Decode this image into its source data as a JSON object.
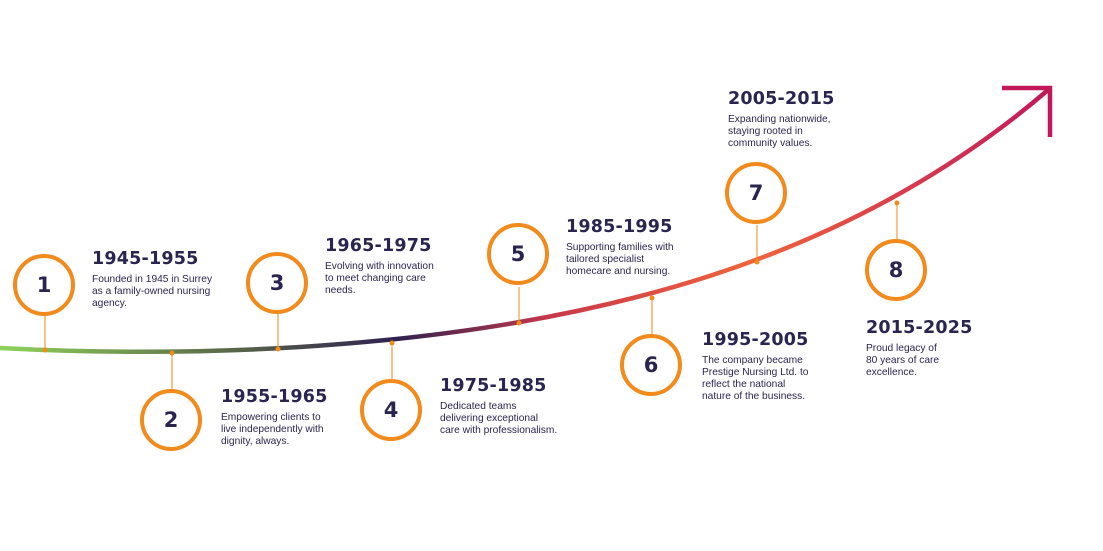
{
  "colors": {
    "circle_border": "#f28a1c",
    "text": "#2a2550",
    "gradient": [
      "#8fd35a",
      "#5c6b4a",
      "#2f2150",
      "#c8384a",
      "#f0643c",
      "#c2185b"
    ],
    "arrow": "#c2185b"
  },
  "milestones": [
    {
      "number": "1",
      "period": "1945-1955",
      "description": "Founded in 1945 in Surrey as a family-owned nursing agency."
    },
    {
      "number": "2",
      "period": "1955-1965",
      "description": "Empowering clients to live independently with dignity, always."
    },
    {
      "number": "3",
      "period": "1965-1975",
      "description": "Evolving with innovation to meet changing care needs."
    },
    {
      "number": "4",
      "period": "1975-1985",
      "description": "Dedicated teams delivering exceptional care with professionalism."
    },
    {
      "number": "5",
      "period": "1985-1995",
      "description": "Supporting families with tailored specialist homecare and nursing."
    },
    {
      "number": "6",
      "period": "1995-2005",
      "description": "The company became Prestige Nursing Ltd. to reflect the national nature of the business."
    },
    {
      "number": "7",
      "period": "2005-2015",
      "description": "Expanding nationwide, staying rooted in community values."
    },
    {
      "number": "8",
      "period": "2015-2025",
      "description": "Proud legacy of 80 years of care excellence."
    }
  ]
}
